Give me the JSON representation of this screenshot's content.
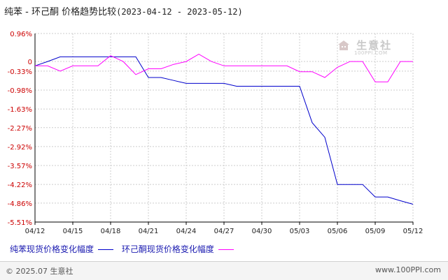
{
  "header": {
    "title": "纯苯 - 环己酮 价格趋势比较",
    "date_range": "(2023-04-12 - 2023-05-12)"
  },
  "legend": {
    "series1_label": "纯苯现货价格变化幅度",
    "series2_label": "环己酮现货价格变化幅度"
  },
  "footer": {
    "copyright": "© 2025.07 生意社",
    "url": "www.100PPI.com"
  },
  "watermark": {
    "text": "生意社",
    "url": "100PPI.COM"
  },
  "colors": {
    "series1": "#0000cc",
    "series2": "#ff00ff",
    "axis": "#000000",
    "grid": "#cccccc",
    "tick_label": "#cc0000"
  },
  "chart_data": {
    "type": "line",
    "title": "纯苯 - 环己酮 价格趋势比较",
    "xlabel": "",
    "ylabel": "",
    "grid": "on",
    "legend_placement": "bottom-left",
    "x_dates": [
      "2023-04-12",
      "2023-04-13",
      "2023-04-14",
      "2023-04-15",
      "2023-04-16",
      "2023-04-17",
      "2023-04-18",
      "2023-04-19",
      "2023-04-20",
      "2023-04-21",
      "2023-04-22",
      "2023-04-23",
      "2023-04-24",
      "2023-04-25",
      "2023-04-26",
      "2023-04-27",
      "2023-04-28",
      "2023-04-29",
      "2023-04-30",
      "2023-05-01",
      "2023-05-02",
      "2023-05-03",
      "2023-05-04",
      "2023-05-05",
      "2023-05-06",
      "2023-05-07",
      "2023-05-08",
      "2023-05-09",
      "2023-05-10",
      "2023-05-11",
      "2023-05-12"
    ],
    "x_tick_labels": [
      "04/12",
      "04/15",
      "04/18",
      "04/21",
      "04/24",
      "04/27",
      "04/30",
      "05/03",
      "05/06",
      "05/09",
      "05/12"
    ],
    "y_ticks": [
      0.96,
      0,
      -0.33,
      -0.98,
      -1.63,
      -2.27,
      -2.92,
      -3.57,
      -4.22,
      -4.86,
      -5.51
    ],
    "y_tick_labels": [
      "0.96%",
      "0",
      "-0.33%",
      "-0.98%",
      "-1.63%",
      "-2.27%",
      "-2.92%",
      "-3.57%",
      "-4.22%",
      "-4.86%",
      "-5.51%"
    ],
    "ylim": [
      -5.51,
      0.96
    ],
    "series": [
      {
        "name": "纯苯现货价格变化幅度",
        "color": "#0000cc",
        "values": [
          -0.15,
          0,
          0.16,
          0.16,
          0.16,
          0.16,
          0.16,
          0.16,
          0.16,
          -0.55,
          -0.55,
          -0.65,
          -0.75,
          -0.75,
          -0.75,
          -0.75,
          -0.85,
          -0.85,
          -0.85,
          -0.85,
          -0.85,
          -0.85,
          -2.1,
          -2.6,
          -4.22,
          -4.22,
          -4.22,
          -4.65,
          -4.65,
          -4.78,
          -4.9
        ]
      },
      {
        "name": "环己酮现货价格变化幅度",
        "color": "#ff00ff",
        "values": [
          -0.15,
          -0.15,
          -0.33,
          -0.15,
          -0.15,
          -0.15,
          0.2,
          0,
          -0.45,
          -0.25,
          -0.25,
          -0.1,
          0,
          0.25,
          0,
          -0.15,
          -0.15,
          -0.15,
          -0.15,
          -0.15,
          -0.15,
          -0.35,
          -0.35,
          -0.55,
          -0.2,
          0,
          0,
          -0.7,
          -0.7,
          0,
          0
        ]
      }
    ]
  }
}
